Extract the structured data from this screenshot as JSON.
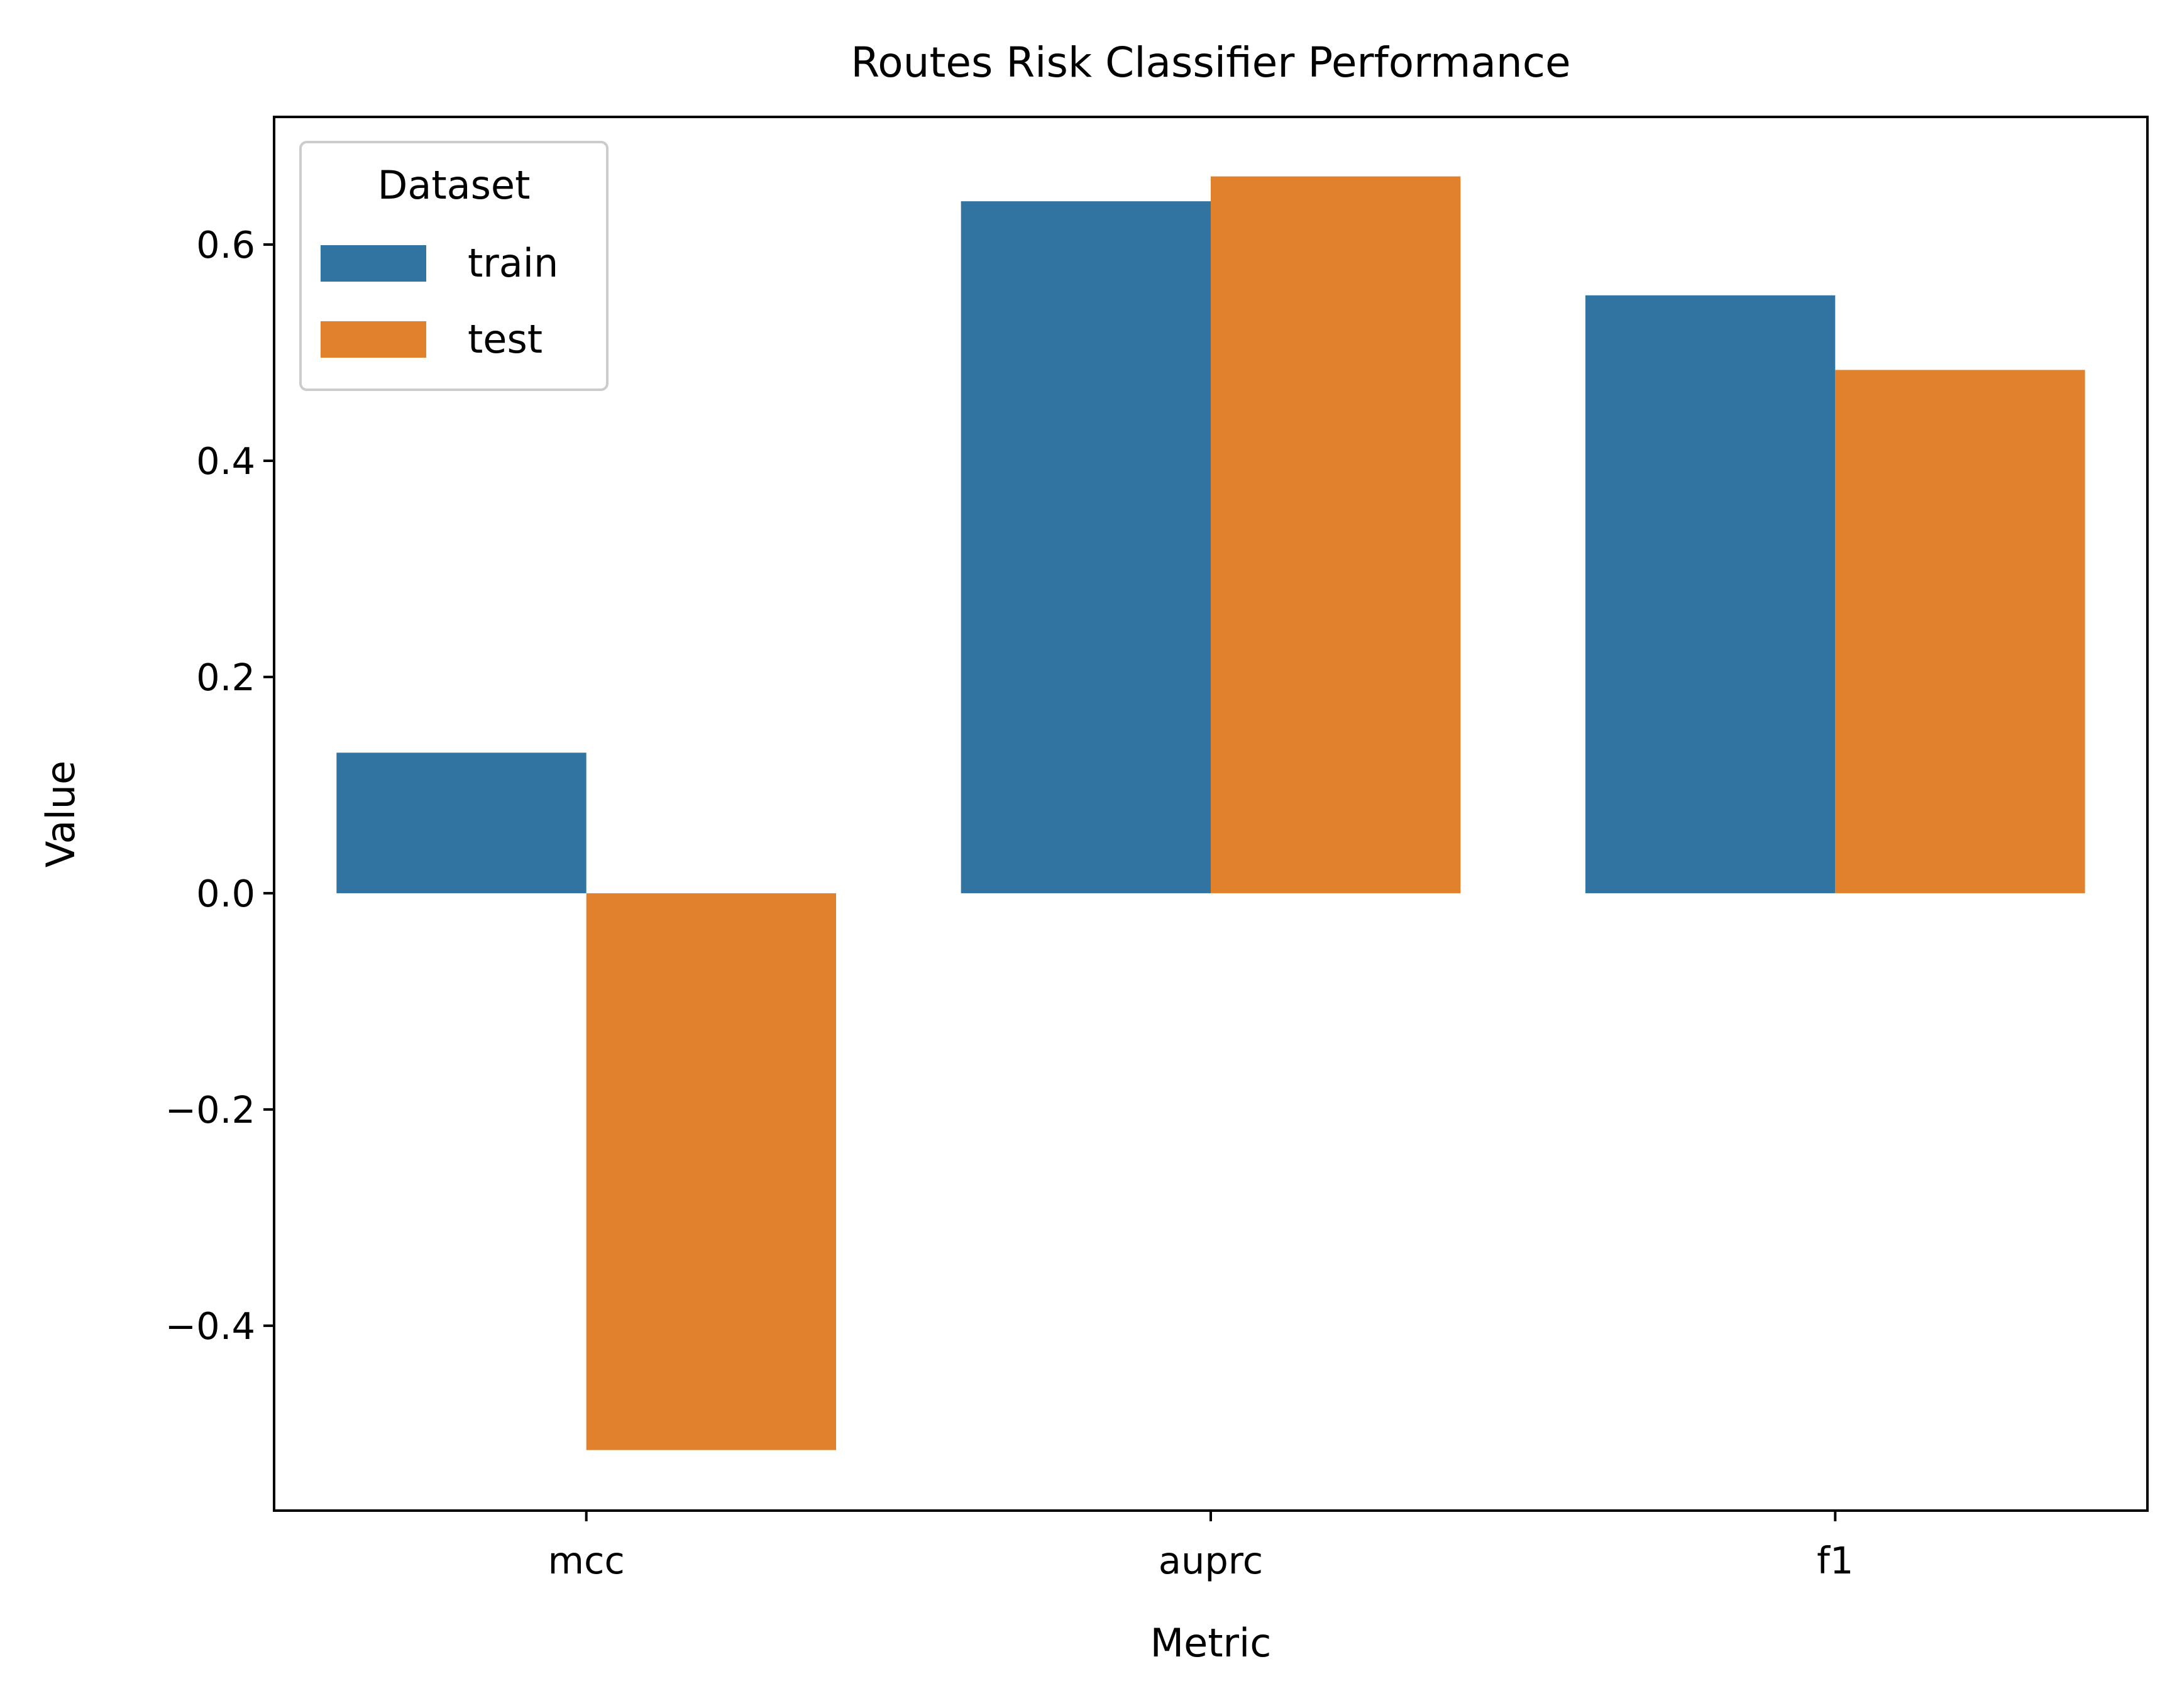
{
  "chart_data": {
    "type": "bar",
    "title": "Routes Risk Classifier Performance",
    "xlabel": "Metric",
    "ylabel": "Value",
    "categories": [
      "mcc",
      "auprc",
      "f1"
    ],
    "series": [
      {
        "name": "train",
        "color": "#3274a1",
        "values": [
          0.13,
          0.64,
          0.553
        ]
      },
      {
        "name": "test",
        "color": "#e1812c",
        "values": [
          -0.515,
          0.663,
          0.484
        ]
      }
    ],
    "ylim": [
      -0.571,
      0.718
    ],
    "yticks": [
      -0.4,
      -0.2,
      0.0,
      0.2,
      0.4,
      0.6
    ],
    "ytick_labels": [
      "−0.4",
      "−0.2",
      "0.0",
      "0.2",
      "0.4",
      "0.6"
    ],
    "grid": false,
    "legend": {
      "title": "Dataset",
      "placement": "top-left"
    }
  }
}
